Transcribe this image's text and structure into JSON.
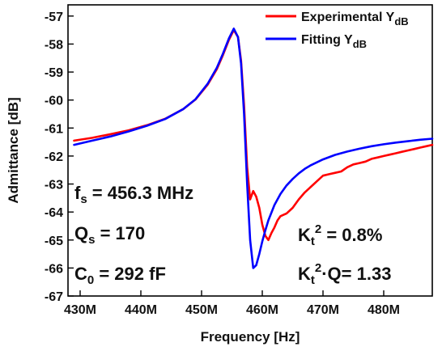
{
  "chart_data": {
    "type": "line",
    "xlabel": "Frequency [Hz]",
    "ylabel": "Admittance [dB]",
    "xlim": [
      428,
      488
    ],
    "ylim": [
      -67,
      -56.6
    ],
    "x_ticks": [
      430,
      440,
      450,
      460,
      470,
      480
    ],
    "x_tick_labels": [
      "430M",
      "440M",
      "450M",
      "460M",
      "470M",
      "480M"
    ],
    "y_ticks": [
      -57,
      -58,
      -59,
      -60,
      -61,
      -62,
      -63,
      -64,
      -65,
      -66,
      -67
    ],
    "y_tick_labels": [
      "-57",
      "-58",
      "-59",
      "-60",
      "-61",
      "-62",
      "-63",
      "-64",
      "-65",
      "-66",
      "-67"
    ],
    "grid": false,
    "legend_position": "top-right",
    "series": [
      {
        "name": "Experimental Y",
        "name_sub": "dB",
        "color": "#ff0000",
        "x": [
          429,
          432,
          435,
          438,
          441,
          444,
          447,
          449,
          451,
          452.5,
          453.5,
          454.5,
          455.3,
          456,
          456.5,
          457,
          457.5,
          458,
          458.5,
          459,
          459.5,
          460,
          460.5,
          461,
          461.5,
          462,
          462.5,
          463,
          463.5,
          464,
          465,
          466,
          467,
          468,
          469,
          470,
          471,
          472,
          473,
          474,
          475,
          476,
          477,
          478,
          479,
          480,
          481,
          482,
          483,
          484,
          485,
          486,
          487,
          488
        ],
        "y": [
          -61.45,
          -61.35,
          -61.22,
          -61.08,
          -60.9,
          -60.67,
          -60.32,
          -59.98,
          -59.45,
          -58.9,
          -58.4,
          -57.85,
          -57.5,
          -57.75,
          -58.6,
          -60.2,
          -62.4,
          -63.55,
          -63.25,
          -63.45,
          -63.85,
          -64.45,
          -64.85,
          -65.0,
          -64.75,
          -64.55,
          -64.3,
          -64.15,
          -64.1,
          -64.05,
          -63.85,
          -63.55,
          -63.3,
          -63.1,
          -62.9,
          -62.7,
          -62.65,
          -62.6,
          -62.55,
          -62.4,
          -62.3,
          -62.25,
          -62.2,
          -62.1,
          -62.05,
          -62.0,
          -61.95,
          -61.9,
          -61.85,
          -61.8,
          -61.75,
          -61.7,
          -61.65,
          -61.6
        ]
      },
      {
        "name": "Fitting Y",
        "name_sub": "dB",
        "color": "#0000ff",
        "x": [
          429,
          432,
          435,
          438,
          441,
          444,
          447,
          449,
          451,
          452.5,
          453.5,
          454.5,
          455.3,
          456,
          456.5,
          457,
          457.5,
          458,
          458.5,
          459,
          459.5,
          460,
          460.5,
          461,
          462,
          463,
          464,
          465,
          466,
          467,
          468,
          470,
          472,
          474,
          476,
          478,
          480,
          482,
          484,
          486,
          488
        ],
        "y": [
          -61.6,
          -61.45,
          -61.3,
          -61.12,
          -60.92,
          -60.68,
          -60.32,
          -59.97,
          -59.42,
          -58.85,
          -58.35,
          -57.8,
          -57.45,
          -57.75,
          -58.7,
          -60.5,
          -63.0,
          -65.0,
          -66.0,
          -65.9,
          -65.5,
          -65.05,
          -64.65,
          -64.3,
          -63.75,
          -63.35,
          -63.05,
          -62.82,
          -62.62,
          -62.46,
          -62.33,
          -62.12,
          -61.96,
          -61.84,
          -61.74,
          -61.65,
          -61.58,
          -61.52,
          -61.47,
          -61.42,
          -61.38
        ]
      }
    ],
    "annotations": {
      "fs": {
        "main": "f",
        "sub": "s",
        "rest": " = 456.3 MHz"
      },
      "qs": {
        "main": "Q",
        "sub": "s",
        "rest": " = 170"
      },
      "c0": {
        "main": "C",
        "sub": "0",
        "rest": " = 292 fF"
      },
      "kt2": {
        "main": "K",
        "sub": "t",
        "sup": "2",
        "rest": " = 0.8%"
      },
      "kt2q": {
        "main": "K",
        "sub": "t",
        "sup": "2",
        "rest": "·Q= 1.33"
      }
    }
  }
}
